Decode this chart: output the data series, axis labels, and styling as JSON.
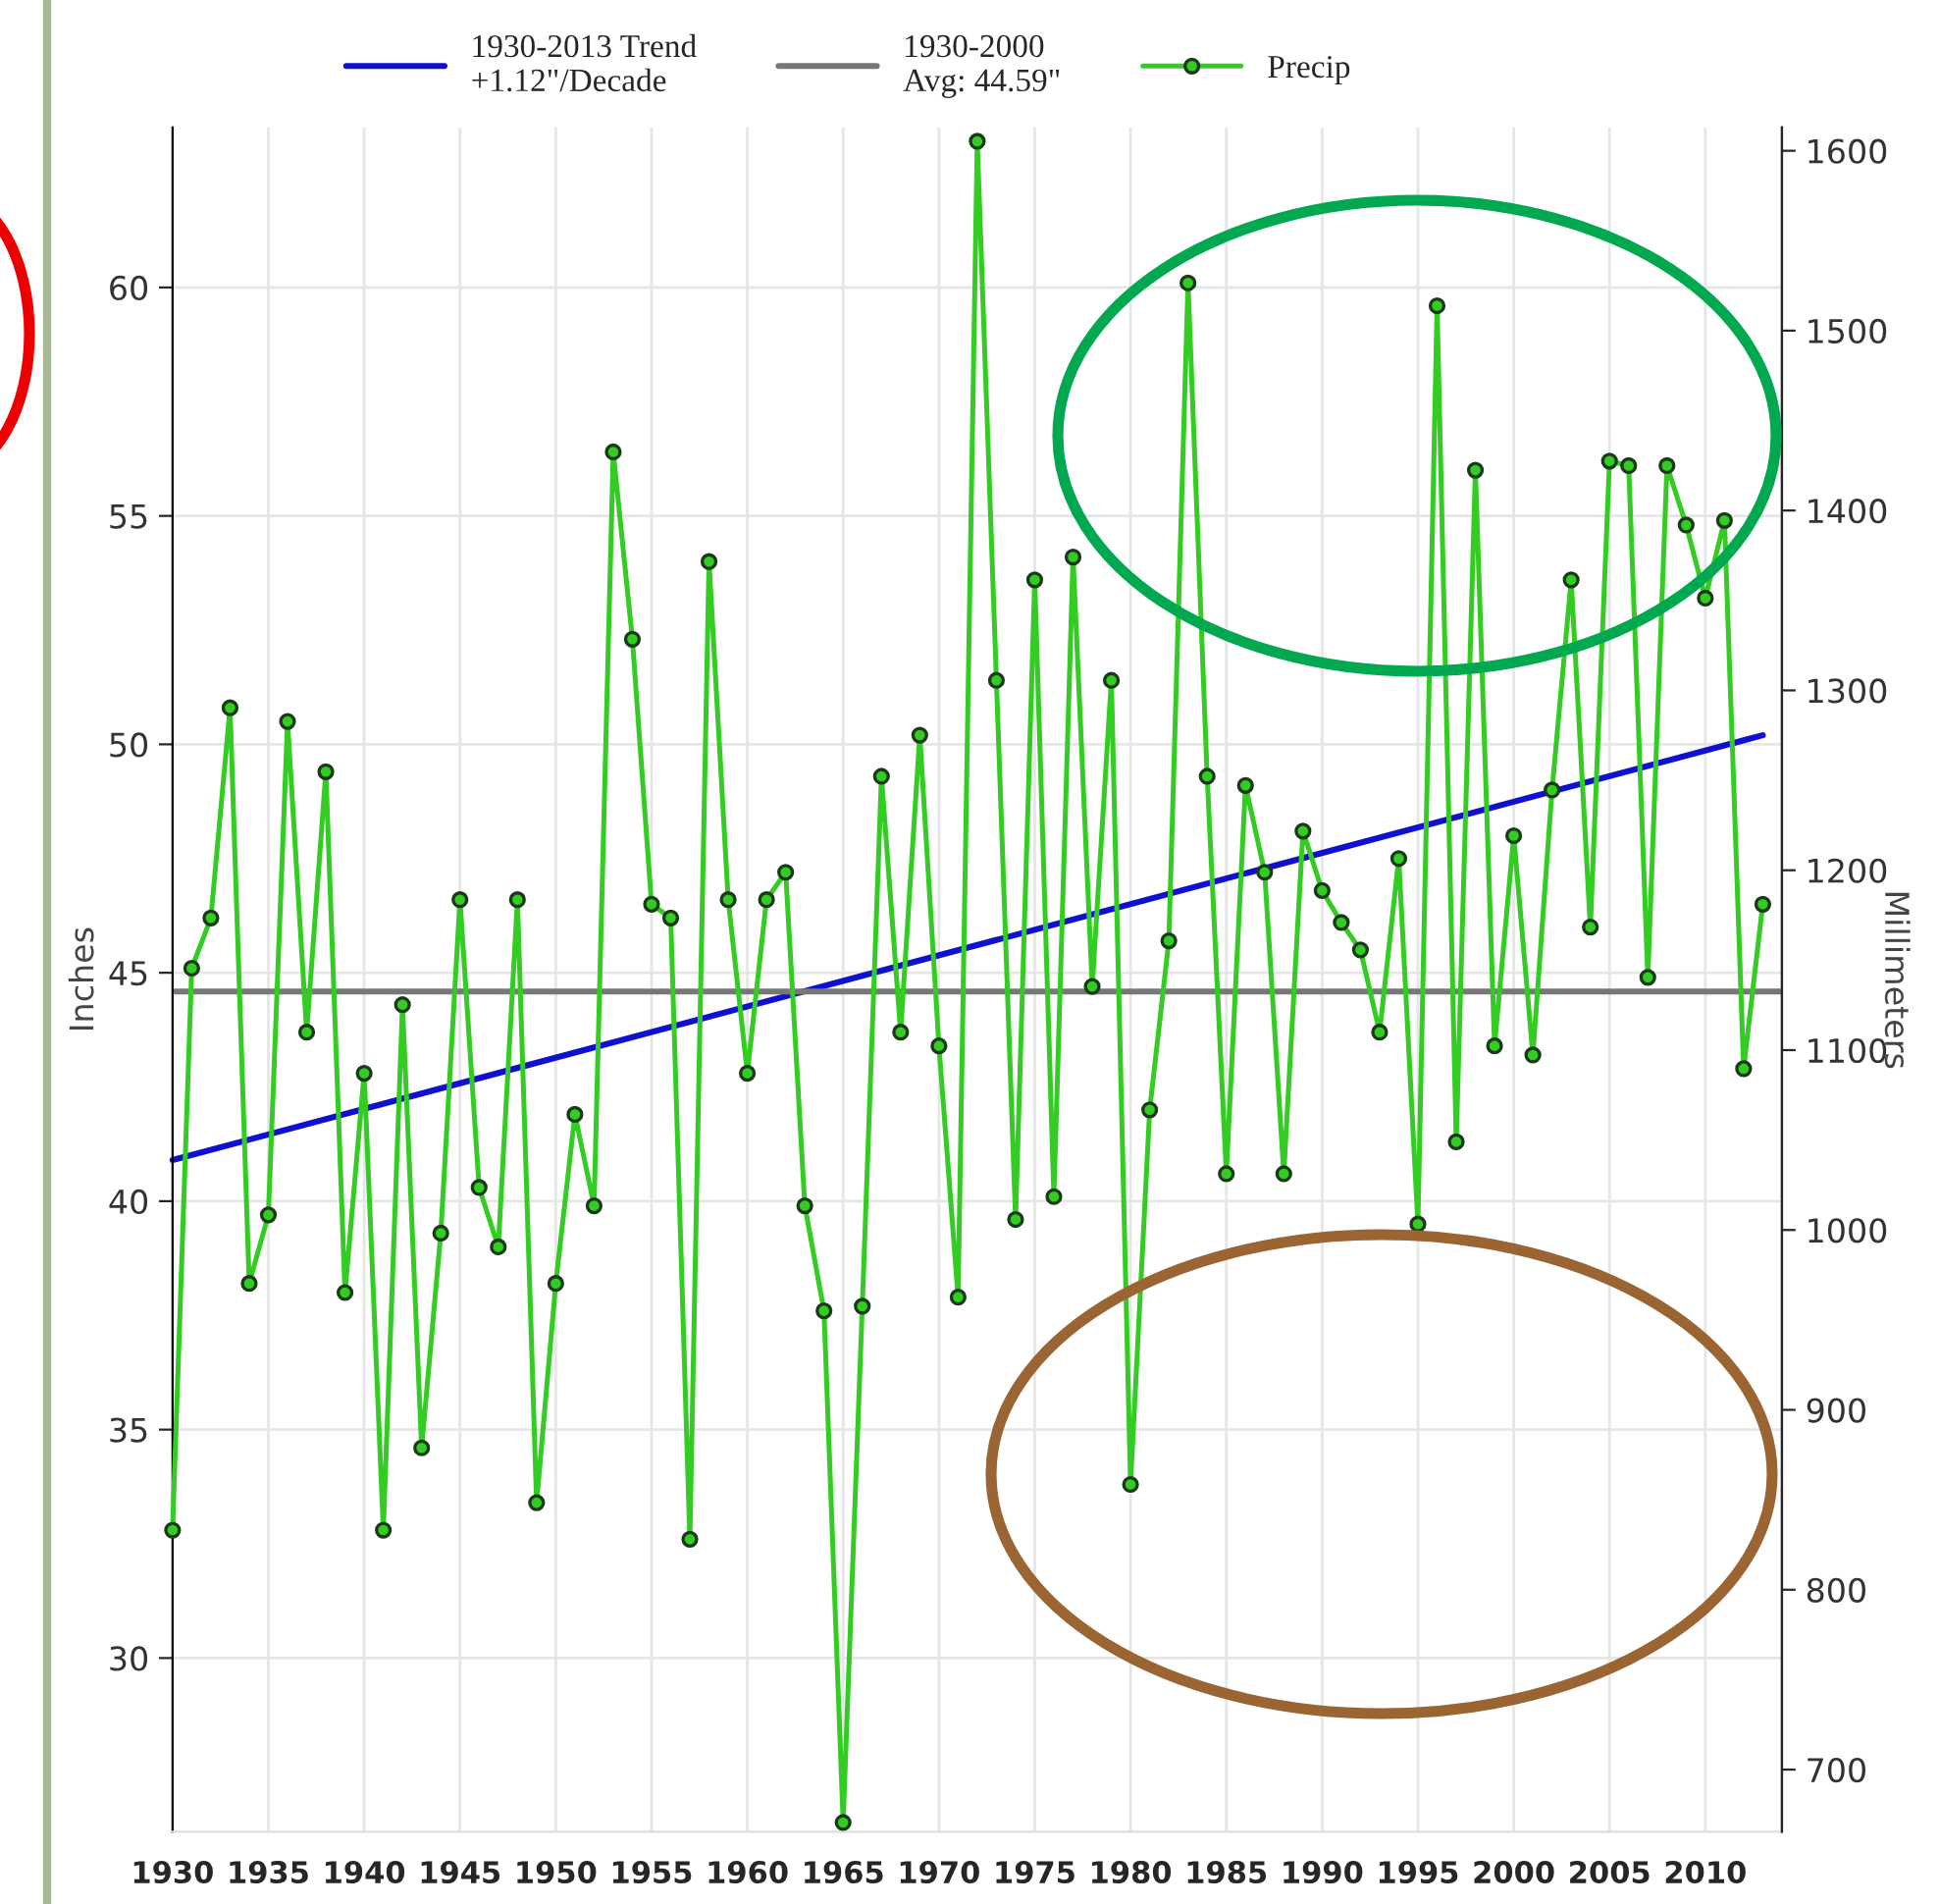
{
  "chart_data": {
    "type": "line",
    "ylabel": "Inches",
    "y2label": "Millimeters",
    "x": [
      1930,
      1931,
      1932,
      1933,
      1934,
      1935,
      1936,
      1937,
      1938,
      1939,
      1940,
      1941,
      1942,
      1943,
      1944,
      1945,
      1946,
      1947,
      1948,
      1949,
      1950,
      1951,
      1952,
      1953,
      1954,
      1955,
      1956,
      1957,
      1958,
      1959,
      1960,
      1961,
      1962,
      1963,
      1964,
      1965,
      1966,
      1967,
      1968,
      1969,
      1970,
      1971,
      1972,
      1973,
      1974,
      1975,
      1976,
      1977,
      1978,
      1979,
      1980,
      1981,
      1982,
      1983,
      1984,
      1985,
      1986,
      1987,
      1988,
      1989,
      1990,
      1991,
      1992,
      1993,
      1994,
      1995,
      1996,
      1997,
      1998,
      1999,
      2000,
      2001,
      2002,
      2003,
      2004,
      2005,
      2006,
      2007,
      2008,
      2009,
      2010,
      2011,
      2012,
      2013
    ],
    "series": [
      {
        "name": "1930-2013 Trend\n+1.12\"/Decade",
        "color": "#1010d0",
        "marker": "none",
        "x": [
          1930,
          2013
        ],
        "values": [
          40.9,
          50.2
        ]
      },
      {
        "name": "Precip",
        "color": "#33cc22",
        "marker": "circle",
        "values": [
          32.8,
          45.1,
          46.2,
          50.8,
          38.2,
          39.7,
          50.5,
          43.7,
          49.4,
          38.0,
          42.8,
          32.8,
          44.3,
          34.6,
          39.3,
          46.6,
          40.3,
          39.0,
          46.6,
          33.4,
          38.2,
          41.9,
          39.9,
          56.4,
          52.3,
          46.5,
          46.2,
          32.6,
          54.0,
          46.6,
          42.8,
          46.6,
          47.2,
          39.9,
          37.6,
          26.4,
          37.7,
          49.3,
          43.7,
          50.2,
          43.4,
          37.9,
          63.2,
          51.4,
          39.6,
          53.6,
          40.1,
          54.1,
          44.7,
          51.4,
          33.8,
          42.0,
          45.7,
          60.1,
          49.3,
          40.6,
          49.1,
          47.2,
          40.6,
          48.1,
          46.8,
          46.1,
          45.5,
          43.7,
          47.5,
          39.5,
          59.6,
          41.3,
          56.0,
          43.4,
          48.0,
          43.2,
          49.0,
          53.6,
          46.0,
          56.2,
          56.1,
          44.9,
          56.1,
          54.8,
          53.2,
          54.9,
          42.9,
          46.5
        ]
      }
    ],
    "xlim": [
      1930,
      2014
    ],
    "xticks": [
      1930,
      1935,
      1940,
      1945,
      1950,
      1955,
      1960,
      1965,
      1970,
      1975,
      1980,
      1985,
      1990,
      1995,
      2000,
      2005,
      2010
    ],
    "ylim": [
      26.2,
      63.5
    ],
    "yticks": [
      30,
      35,
      40,
      45,
      50,
      55,
      60
    ],
    "y2lim": [
      665.5,
      1612.9
    ],
    "y2ticks": [
      700,
      800,
      900,
      1000,
      1100,
      1200,
      1300,
      1400,
      1500,
      1600
    ],
    "ref_lines": [
      {
        "axis": "y",
        "value": 44.59,
        "label": "1930-2000\nAvg: 44.59\"",
        "color": "#777777",
        "line_style": "solid"
      }
    ],
    "grid": true,
    "legend": "top",
    "line_style": "solid"
  }
}
